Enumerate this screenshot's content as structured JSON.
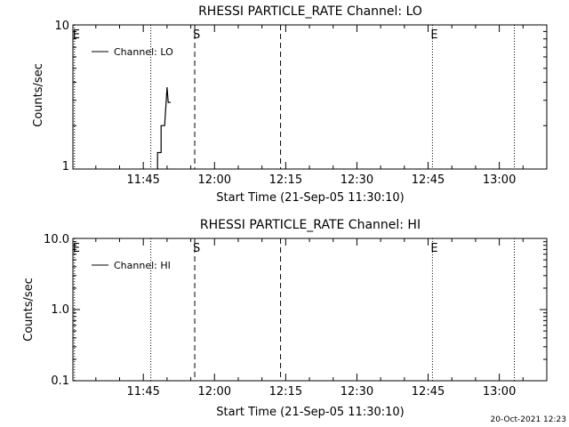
{
  "footer": {
    "timestamp": "20-Oct-2021 12:23"
  },
  "chart_data": [
    {
      "type": "line",
      "title": "RHESSI PARTICLE_RATE Channel: LO",
      "xlabel": "Start Time (21-Sep-05 11:30:10)",
      "ylabel": "Counts/sec",
      "y_scale": "log",
      "ylim": [
        1,
        10
      ],
      "y_ticks": [
        "1",
        "10"
      ],
      "x_ticks": [
        "11:45",
        "12:00",
        "12:15",
        "12:30",
        "12:45",
        "13:00"
      ],
      "legend": {
        "label": "Channel: LO",
        "position": "top-left"
      },
      "markers": [
        {
          "label": "E",
          "time": "11:30:30",
          "style": "dotted"
        },
        {
          "label": "",
          "time": "11:46:35",
          "style": "dotted"
        },
        {
          "label": "S",
          "time": "11:55:50",
          "style": "dashed"
        },
        {
          "label": "",
          "time": "12:13:55",
          "style": "dashed"
        },
        {
          "label": "E",
          "time": "12:45:55",
          "style": "dotted"
        },
        {
          "label": "",
          "time": "13:03:10",
          "style": "dotted"
        }
      ],
      "series": [
        {
          "name": "Channel: LO",
          "x": [
            "11:48:00",
            "11:48:00",
            "11:48:45",
            "11:48:45",
            "11:49:30",
            "11:50:00",
            "11:50:15",
            "11:50:45"
          ],
          "y": [
            1.0,
            1.3,
            1.3,
            2.0,
            2.0,
            3.7,
            2.9,
            2.9
          ]
        }
      ]
    },
    {
      "type": "line",
      "title": "RHESSI PARTICLE_RATE Channel: HI",
      "xlabel": "Start Time (21-Sep-05 11:30:10)",
      "ylabel": "Counts/sec",
      "y_scale": "log",
      "ylim": [
        0.1,
        10
      ],
      "y_ticks": [
        "0.1",
        "1.0",
        "10.0"
      ],
      "x_ticks": [
        "11:45",
        "12:00",
        "12:15",
        "12:30",
        "12:45",
        "13:00"
      ],
      "legend": {
        "label": "Channel: HI",
        "position": "top-left"
      },
      "markers": [
        {
          "label": "E",
          "time": "11:30:30",
          "style": "dotted"
        },
        {
          "label": "",
          "time": "11:46:35",
          "style": "dotted"
        },
        {
          "label": "S",
          "time": "11:55:50",
          "style": "dashed"
        },
        {
          "label": "",
          "time": "12:13:55",
          "style": "dashed"
        },
        {
          "label": "E",
          "time": "12:45:55",
          "style": "dotted"
        },
        {
          "label": "",
          "time": "13:03:10",
          "style": "dotted"
        }
      ],
      "series": [
        {
          "name": "Channel: HI",
          "x": [],
          "y": []
        }
      ]
    }
  ]
}
